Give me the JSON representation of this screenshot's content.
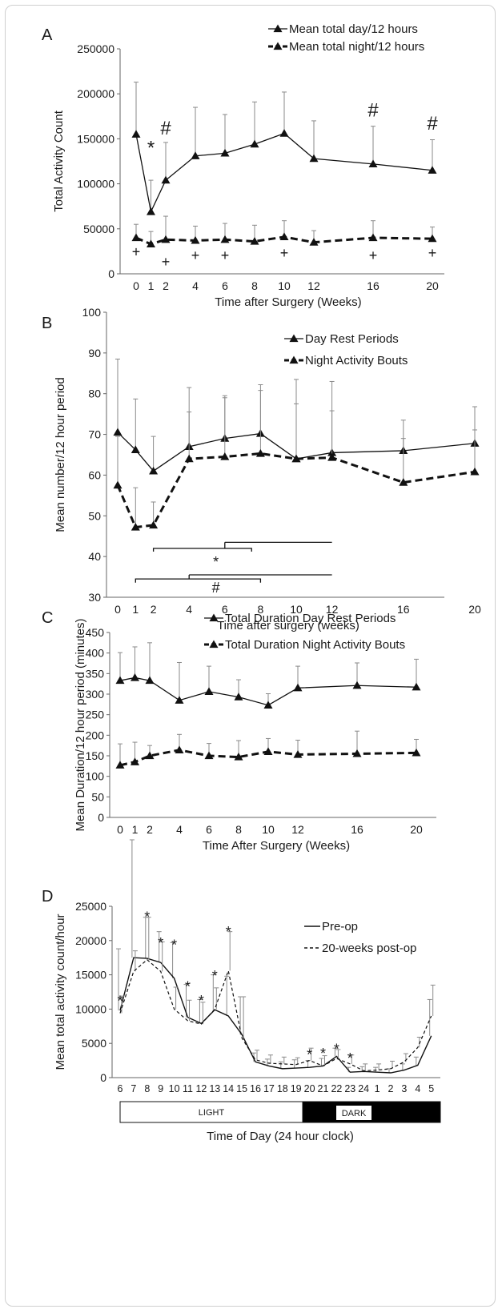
{
  "chart_data": [
    {
      "type": "line",
      "panel_label": "A",
      "xlabel": "Time after Surgery (Weeks)",
      "ylabel": "Total Activity Count",
      "x_ticks": [
        "0",
        "1",
        "2",
        "4",
        "6",
        "8",
        "10",
        "12",
        "16",
        "20"
      ],
      "x_positions": [
        0,
        1,
        2,
        4,
        6,
        8,
        10,
        12,
        16,
        20
      ],
      "ylim": [
        0,
        250000
      ],
      "y_ticks": [
        "0",
        "50000",
        "100000",
        "150000",
        "200000",
        "250000"
      ],
      "y_tick_values": [
        0,
        50000,
        100000,
        150000,
        200000,
        250000
      ],
      "legend": "top-right",
      "series": [
        {
          "name": "Mean total day/12 hours",
          "style": "solid",
          "x": [
            0,
            1,
            2,
            4,
            6,
            8,
            10,
            12,
            16,
            20
          ],
          "y": [
            155000,
            69000,
            104000,
            131000,
            134000,
            144000,
            156000,
            128000,
            122000,
            115000
          ],
          "err": [
            58000,
            35000,
            42000,
            54000,
            43000,
            47000,
            46000,
            42000,
            42000,
            34000
          ]
        },
        {
          "name": "Mean total night/12 hours",
          "style": "dashed",
          "x": [
            0,
            1,
            2,
            4,
            6,
            8,
            10,
            12,
            16,
            20
          ],
          "y": [
            40000,
            33000,
            38000,
            37000,
            38000,
            36000,
            41000,
            35000,
            40000,
            39000
          ],
          "err": [
            15000,
            14000,
            26000,
            16000,
            18000,
            18000,
            18000,
            13000,
            19000,
            13000
          ]
        }
      ],
      "annotations": [
        {
          "text": "#",
          "x": 2,
          "y": 155000
        },
        {
          "text": "#",
          "x": 16,
          "y": 175000
        },
        {
          "text": "#",
          "x": 20,
          "y": 160000
        },
        {
          "text": "*",
          "x": 1,
          "y": 133000
        },
        {
          "text": "+",
          "x": 0,
          "y": 19000
        },
        {
          "text": "+",
          "x": 2,
          "y": 8000
        },
        {
          "text": "+",
          "x": 4,
          "y": 15000
        },
        {
          "text": "+",
          "x": 6,
          "y": 15000
        },
        {
          "text": "+",
          "x": 10,
          "y": 18000
        },
        {
          "text": "+",
          "x": 16,
          "y": 15000
        },
        {
          "text": "+",
          "x": 20,
          "y": 18000
        }
      ]
    },
    {
      "type": "line",
      "panel_label": "B",
      "xlabel": "Time after surgery (weeks)",
      "ylabel": "Mean number/12 hour period",
      "x_ticks": [
        "0",
        "1",
        "2",
        "4",
        "6",
        "8",
        "10",
        "12",
        "16",
        "20"
      ],
      "x_positions": [
        0,
        1,
        2,
        4,
        6,
        8,
        10,
        12,
        16,
        20
      ],
      "ylim": [
        30,
        100
      ],
      "y_ticks": [
        "30",
        "40",
        "50",
        "60",
        "70",
        "80",
        "90",
        "100"
      ],
      "y_tick_values": [
        30,
        40,
        50,
        60,
        70,
        80,
        90,
        100
      ],
      "legend": "top-right",
      "series": [
        {
          "name": "Day Rest Periods",
          "style": "solid",
          "x": [
            0,
            1,
            2,
            4,
            6,
            8,
            10,
            12,
            16,
            20
          ],
          "y": [
            70.5,
            66.2,
            61.0,
            67.0,
            69.0,
            70.2,
            64.0,
            65.5,
            66.0,
            67.8
          ],
          "err": [
            18,
            12.5,
            8.5,
            8.5,
            10,
            12,
            13.5,
            17.5,
            7.5,
            9
          ]
        },
        {
          "name": "Night Activity Bouts",
          "style": "dashed",
          "x": [
            0,
            1,
            2,
            4,
            6,
            8,
            10,
            12,
            16,
            20
          ],
          "y": [
            57.5,
            47.2,
            47.7,
            64.0,
            64.5,
            65.3,
            64.0,
            64.3,
            58.2,
            60.8
          ],
          "err": [
            12,
            9.7,
            5.7,
            17.5,
            15,
            15.5,
            19.5,
            11.5,
            10.8,
            10.3
          ]
        }
      ],
      "annotations": [
        {
          "text": "*",
          "x": 5.5,
          "y": 37.5
        },
        {
          "text": "#",
          "x": 5.5,
          "y": 31.2
        }
      ],
      "brackets": [
        {
          "x1": 2,
          "x2": 7.5,
          "y": 42,
          "drop_y": 41.2,
          "riser_x": 6,
          "top_y": 43.5,
          "top_x2": 12
        },
        {
          "x1": 1,
          "x2": 8,
          "y": 34.5,
          "drop_y": 33.6,
          "riser_x": 4,
          "top_y": 35.5,
          "top_x2": 12
        }
      ]
    },
    {
      "type": "line",
      "panel_label": "C",
      "xlabel": "Time After Surgery (Weeks)",
      "ylabel": "Mean Duration/12 hour period (minutes)",
      "x_ticks": [
        "0",
        "1",
        "2",
        "4",
        "6",
        "8",
        "10",
        "12",
        "16",
        "20"
      ],
      "x_positions": [
        0,
        1,
        2,
        4,
        6,
        8,
        10,
        12,
        16,
        20
      ],
      "ylim": [
        0,
        450
      ],
      "y_ticks": [
        "0",
        "50",
        "100",
        "150",
        "200",
        "250",
        "300",
        "350",
        "400",
        "450"
      ],
      "y_tick_values": [
        0,
        50,
        100,
        150,
        200,
        250,
        300,
        350,
        400,
        450
      ],
      "legend": "top-right",
      "series": [
        {
          "name": "Total Duration Day Rest Periods",
          "style": "solid",
          "x": [
            0,
            1,
            2,
            4,
            6,
            8,
            10,
            12,
            16,
            20
          ],
          "y": [
            333,
            340,
            333,
            285,
            306,
            293,
            273,
            315,
            321,
            317
          ],
          "err": [
            68,
            75,
            92,
            92,
            62,
            42,
            28,
            53,
            55,
            68
          ]
        },
        {
          "name": "Total Duration Night Activity Bouts",
          "style": "dashed",
          "x": [
            0,
            1,
            2,
            4,
            6,
            8,
            10,
            12,
            16,
            20
          ],
          "y": [
            127,
            135,
            150,
            164,
            150,
            147,
            160,
            153,
            155,
            157
          ],
          "err": [
            52,
            48,
            25,
            38,
            30,
            40,
            32,
            35,
            55,
            33
          ]
        }
      ]
    },
    {
      "type": "line",
      "panel_label": "D",
      "xlabel": "Time of Day (24 hour clock)",
      "ylabel": "Mean total activity count/hour",
      "x_ticks": [
        "6",
        "7",
        "8",
        "9",
        "10",
        "11",
        "12",
        "13",
        "14",
        "15",
        "16",
        "17",
        "18",
        "19",
        "20",
        "21",
        "22",
        "23",
        "24",
        "1",
        "2",
        "3",
        "4",
        "5"
      ],
      "ylim": [
        0,
        25000
      ],
      "y_ticks": [
        "0",
        "5000",
        "10000",
        "15000",
        "20000",
        "25000"
      ],
      "y_tick_values": [
        0,
        5000,
        10000,
        15000,
        20000,
        25000
      ],
      "legend": "top-right",
      "series": [
        {
          "name": "Pre-op",
          "style": "solid",
          "y": [
            9800,
            17500,
            17400,
            16800,
            14500,
            8800,
            7900,
            9900,
            9000,
            6300,
            2300,
            1700,
            1300,
            1400,
            1500,
            1700,
            3100,
            800,
            900,
            800,
            700,
            1100,
            1800,
            6100
          ],
          "err": [
            9000,
            17200,
            6000,
            4500,
            5200,
            4800,
            3500,
            5100,
            5800,
            5500,
            1300,
            1000,
            1000,
            1200,
            1000,
            1100,
            1200,
            700,
            700,
            700,
            600,
            900,
            1200,
            5300
          ]
        },
        {
          "name": "20-weeks post-op",
          "style": "dashed",
          "y": [
            9400,
            15500,
            17200,
            15500,
            10000,
            8300,
            7800,
            10000,
            15600,
            5800,
            2600,
            2100,
            2000,
            1900,
            2500,
            1700,
            2800,
            2000,
            1000,
            1100,
            1300,
            2300,
            4400,
            9000
          ],
          "err": [
            2500,
            3000,
            6200,
            4300,
            3200,
            3000,
            3200,
            3100,
            5700,
            6000,
            1400,
            1200,
            1000,
            1000,
            1800,
            1500,
            1300,
            1300,
            1000,
            900,
            1100,
            1200,
            1500,
            4500
          ]
        }
      ],
      "star_markers": [
        {
          "i": 0,
          "y": 11600
        },
        {
          "i": 2,
          "y": 23900
        },
        {
          "i": 3,
          "y": 20100
        },
        {
          "i": 4,
          "y": 19800
        },
        {
          "i": 5,
          "y": 13700
        },
        {
          "i": 6,
          "y": 11700
        },
        {
          "i": 7,
          "y": 15300
        },
        {
          "i": 8,
          "y": 21700
        },
        {
          "i": 14,
          "y": 3800
        },
        {
          "i": 15,
          "y": 4000
        },
        {
          "i": 16,
          "y": 4600
        },
        {
          "i": 17,
          "y": 3300
        }
      ],
      "light_dark_bar": {
        "light_label": "LIGHT",
        "dark_label": "DARK"
      }
    }
  ]
}
